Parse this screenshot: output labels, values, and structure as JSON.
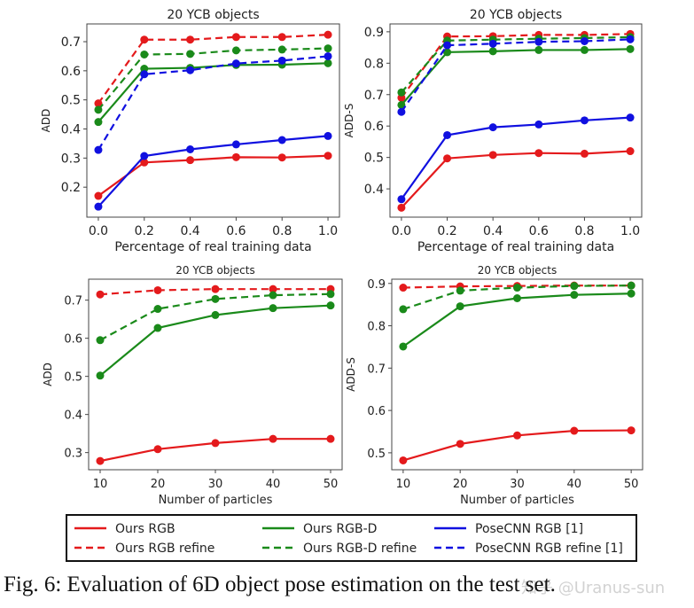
{
  "chart_data": [
    {
      "type": "line",
      "title": "20 YCB objects",
      "xlabel": "Percentage of real training data",
      "ylabel": "ADD",
      "x": [
        0.0,
        0.2,
        0.4,
        0.6,
        0.8,
        1.0
      ],
      "xticks": [
        "0.0",
        "0.2",
        "0.4",
        "0.6",
        "0.8",
        "1.0"
      ],
      "yticks": [
        "0.2",
        "0.3",
        "0.4",
        "0.5",
        "0.6",
        "0.7"
      ],
      "xlim": [
        -0.05,
        1.05
      ],
      "ylim": [
        0.097,
        0.761
      ],
      "series": [
        {
          "name": "Ours RGB",
          "values": [
            0.17,
            0.285,
            0.293,
            0.303,
            0.302,
            0.308
          ]
        },
        {
          "name": "Ours RGB refine",
          "values": [
            0.488,
            0.707,
            0.707,
            0.716,
            0.716,
            0.724
          ]
        },
        {
          "name": "Ours RGB-D",
          "values": [
            0.424,
            0.607,
            0.61,
            0.62,
            0.621,
            0.626
          ]
        },
        {
          "name": "Ours RGB-D refine",
          "values": [
            0.466,
            0.656,
            0.658,
            0.67,
            0.673,
            0.677
          ]
        },
        {
          "name": "PoseCNN RGB [1]",
          "values": [
            0.133,
            0.307,
            0.33,
            0.347,
            0.362,
            0.376
          ]
        },
        {
          "name": "PoseCNN RGB refine [1]",
          "values": [
            0.328,
            0.588,
            0.602,
            0.625,
            0.635,
            0.65
          ]
        }
      ]
    },
    {
      "type": "line",
      "title": "20 YCB objects",
      "xlabel": "Percentage of real training data",
      "ylabel": "ADD-S",
      "x": [
        0.0,
        0.2,
        0.4,
        0.6,
        0.8,
        1.0
      ],
      "xticks": [
        "0.0",
        "0.2",
        "0.4",
        "0.6",
        "0.8",
        "1.0"
      ],
      "yticks": [
        "0.4",
        "0.5",
        "0.6",
        "0.7",
        "0.8",
        "0.9"
      ],
      "xlim": [
        -0.05,
        1.05
      ],
      "ylim": [
        0.31,
        0.925
      ],
      "series": [
        {
          "name": "Ours RGB",
          "values": [
            0.34,
            0.497,
            0.508,
            0.514,
            0.512,
            0.52
          ]
        },
        {
          "name": "Ours RGB refine",
          "values": [
            0.69,
            0.885,
            0.886,
            0.89,
            0.89,
            0.893
          ]
        },
        {
          "name": "Ours RGB-D",
          "values": [
            0.667,
            0.835,
            0.838,
            0.842,
            0.842,
            0.845
          ]
        },
        {
          "name": "Ours RGB-D refine",
          "values": [
            0.707,
            0.872,
            0.875,
            0.878,
            0.88,
            0.883
          ]
        },
        {
          "name": "PoseCNN RGB [1]",
          "values": [
            0.367,
            0.571,
            0.596,
            0.605,
            0.618,
            0.627
          ]
        },
        {
          "name": "PoseCNN RGB refine [1]",
          "values": [
            0.645,
            0.857,
            0.862,
            0.868,
            0.87,
            0.876
          ]
        }
      ]
    },
    {
      "type": "line",
      "title": "20 YCB objects",
      "xlabel": "Number of particles",
      "ylabel": "ADD",
      "x": [
        10,
        20,
        30,
        40,
        50
      ],
      "xticks": [
        "10",
        "20",
        "30",
        "40",
        "50"
      ],
      "yticks": [
        "0.3",
        "0.4",
        "0.5",
        "0.6",
        "0.7"
      ],
      "xlim": [
        8,
        52
      ],
      "ylim": [
        0.255,
        0.755
      ],
      "series": [
        {
          "name": "Ours RGB",
          "values": [
            0.278,
            0.309,
            0.325,
            0.336,
            0.336
          ]
        },
        {
          "name": "Ours RGB refine",
          "values": [
            0.715,
            0.726,
            0.729,
            0.729,
            0.729
          ]
        },
        {
          "name": "Ours RGB-D",
          "values": [
            0.502,
            0.627,
            0.661,
            0.679,
            0.686
          ]
        },
        {
          "name": "Ours RGB-D refine",
          "values": [
            0.595,
            0.677,
            0.703,
            0.713,
            0.716
          ]
        }
      ]
    },
    {
      "type": "line",
      "title": "20 YCB objects",
      "xlabel": "Number of particles",
      "ylabel": "ADD-S",
      "x": [
        10,
        20,
        30,
        40,
        50
      ],
      "xticks": [
        "10",
        "20",
        "30",
        "40",
        "50"
      ],
      "yticks": [
        "0.5",
        "0.6",
        "0.7",
        "0.8",
        "0.9"
      ],
      "xlim": [
        8,
        52
      ],
      "ylim": [
        0.46,
        0.91
      ],
      "series": [
        {
          "name": "Ours RGB",
          "values": [
            0.482,
            0.521,
            0.541,
            0.552,
            0.553
          ]
        },
        {
          "name": "Ours RGB refine",
          "values": [
            0.89,
            0.893,
            0.894,
            0.895,
            0.895
          ]
        },
        {
          "name": "Ours RGB-D",
          "values": [
            0.751,
            0.846,
            0.865,
            0.873,
            0.876
          ]
        },
        {
          "name": "Ours RGB-D refine",
          "values": [
            0.839,
            0.883,
            0.89,
            0.894,
            0.895
          ]
        }
      ]
    }
  ],
  "legend": {
    "placement": "bottom",
    "entries": [
      {
        "label": "Ours RGB",
        "color": "#e41a1c",
        "style": "solid"
      },
      {
        "label": "Ours RGB refine",
        "color": "#e41a1c",
        "style": "dashed"
      },
      {
        "label": "Ours RGB-D",
        "color": "#1a8a1a",
        "style": "solid"
      },
      {
        "label": "Ours RGB-D refine",
        "color": "#1a8a1a",
        "style": "dashed"
      },
      {
        "label": "PoseCNN RGB [1]",
        "color": "#1010e0",
        "style": "solid"
      },
      {
        "label": "PoseCNN RGB refine [1]",
        "color": "#1010e0",
        "style": "dashed"
      }
    ]
  },
  "caption": "Fig. 6: Evaluation of 6D object pose estimation on the test set.",
  "watermark": "知乎 @Uranus-sun"
}
